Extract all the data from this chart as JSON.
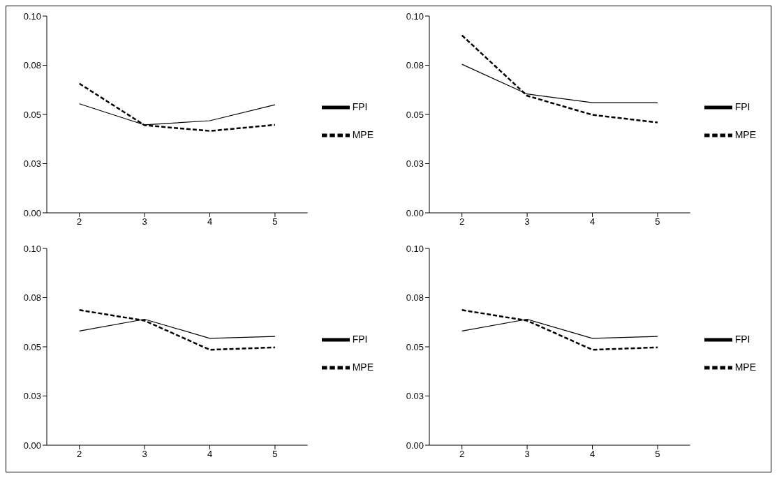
{
  "chart_data": [
    {
      "type": "line",
      "categories": [
        "2",
        "3",
        "4",
        "5"
      ],
      "ylim": [
        0,
        0.1
      ],
      "yticks": [
        {
          "value": 0,
          "label": "0.00"
        },
        {
          "value": 0.025,
          "label": "0.03"
        },
        {
          "value": 0.05,
          "label": "0.05"
        },
        {
          "value": 0.075,
          "label": "0.08"
        },
        {
          "value": 0.1,
          "label": "0.10"
        }
      ],
      "grid": false,
      "legend": "right",
      "marker": "none",
      "series": [
        {
          "name": "FPI",
          "color": "#000000",
          "line_style": "solid",
          "values": [
            0.0554,
            0.0447,
            0.0468,
            0.0549
          ]
        },
        {
          "name": "MPE",
          "color": "#000000",
          "line_style": "dashed",
          "values": [
            0.0657,
            0.0445,
            0.0416,
            0.0447
          ]
        }
      ]
    },
    {
      "type": "line",
      "categories": [
        "2",
        "3",
        "4",
        "5"
      ],
      "ylim": [
        0,
        0.1
      ],
      "yticks": [
        {
          "value": 0,
          "label": "0.00"
        },
        {
          "value": 0.025,
          "label": "0.03"
        },
        {
          "value": 0.05,
          "label": "0.05"
        },
        {
          "value": 0.075,
          "label": "0.08"
        },
        {
          "value": 0.1,
          "label": "0.10"
        }
      ],
      "grid": false,
      "legend": "right",
      "marker": "none",
      "series": [
        {
          "name": "FPI",
          "color": "#000000",
          "line_style": "solid",
          "values": [
            0.0755,
            0.0604,
            0.056,
            0.056
          ]
        },
        {
          "name": "MPE",
          "color": "#000000",
          "line_style": "dashed",
          "values": [
            0.0902,
            0.0595,
            0.0498,
            0.0459
          ]
        }
      ]
    },
    {
      "type": "line",
      "categories": [
        "2",
        "3",
        "4",
        "5"
      ],
      "ylim": [
        0,
        0.1
      ],
      "yticks": [
        {
          "value": 0,
          "label": "0.00"
        },
        {
          "value": 0.025,
          "label": "0.03"
        },
        {
          "value": 0.05,
          "label": "0.05"
        },
        {
          "value": 0.075,
          "label": "0.08"
        },
        {
          "value": 0.1,
          "label": "0.10"
        }
      ],
      "grid": false,
      "legend": "right",
      "marker": "none",
      "series": [
        {
          "name": "FPI",
          "color": "#000000",
          "line_style": "solid",
          "values": [
            0.058,
            0.064,
            0.0543,
            0.0553
          ]
        },
        {
          "name": "MPE",
          "color": "#000000",
          "line_style": "dashed",
          "values": [
            0.0687,
            0.0633,
            0.0485,
            0.0497
          ]
        }
      ]
    },
    {
      "type": "line",
      "categories": [
        "2",
        "3",
        "4",
        "5"
      ],
      "ylim": [
        0,
        0.1
      ],
      "yticks": [
        {
          "value": 0,
          "label": "0.00"
        },
        {
          "value": 0.025,
          "label": "0.03"
        },
        {
          "value": 0.05,
          "label": "0.05"
        },
        {
          "value": 0.075,
          "label": "0.08"
        },
        {
          "value": 0.1,
          "label": "0.10"
        }
      ],
      "grid": false,
      "legend": "right",
      "marker": "none",
      "series": [
        {
          "name": "FPI",
          "color": "#000000",
          "line_style": "solid",
          "values": [
            0.058,
            0.064,
            0.0543,
            0.0553
          ]
        },
        {
          "name": "MPE",
          "color": "#000000",
          "line_style": "dashed",
          "values": [
            0.0687,
            0.0633,
            0.0485,
            0.0497
          ]
        }
      ]
    }
  ]
}
